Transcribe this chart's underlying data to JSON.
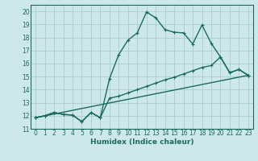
{
  "xlabel": "Humidex (Indice chaleur)",
  "bg_color": "#cce8e8",
  "grid_color": "#aacccc",
  "line_color": "#1a6b5e",
  "xlim": [
    -0.5,
    23.5
  ],
  "ylim": [
    11,
    20.5
  ],
  "xticks": [
    0,
    1,
    2,
    3,
    4,
    5,
    6,
    7,
    8,
    9,
    10,
    11,
    12,
    13,
    14,
    15,
    16,
    17,
    18,
    19,
    20,
    21,
    22,
    23
  ],
  "yticks": [
    11,
    12,
    13,
    14,
    15,
    16,
    17,
    18,
    19,
    20
  ],
  "line1_x": [
    0,
    1,
    2,
    3,
    4,
    5,
    6,
    7,
    8,
    9,
    10,
    11,
    12,
    13,
    14,
    15,
    16,
    17,
    18,
    19,
    20,
    21,
    22,
    23
  ],
  "line1_y": [
    11.85,
    12.0,
    12.25,
    12.1,
    12.05,
    11.55,
    12.25,
    11.85,
    14.85,
    16.7,
    17.8,
    18.35,
    19.95,
    19.5,
    18.6,
    18.4,
    18.35,
    17.5,
    18.95,
    17.55,
    16.5,
    15.3,
    15.55,
    15.1
  ],
  "line2_x": [
    0,
    1,
    2,
    3,
    4,
    5,
    6,
    7,
    8,
    9,
    10,
    11,
    12,
    13,
    14,
    15,
    16,
    17,
    18,
    19,
    20,
    21,
    22,
    23
  ],
  "line2_y": [
    11.85,
    12.0,
    12.25,
    12.1,
    12.05,
    11.55,
    12.25,
    11.85,
    13.35,
    13.5,
    13.75,
    14.0,
    14.25,
    14.5,
    14.75,
    14.95,
    15.2,
    15.45,
    15.7,
    15.85,
    16.5,
    15.3,
    15.55,
    15.1
  ],
  "line3_x": [
    0,
    23
  ],
  "line3_y": [
    11.85,
    15.1
  ],
  "line_width": 1.0,
  "marker_size": 2.5
}
